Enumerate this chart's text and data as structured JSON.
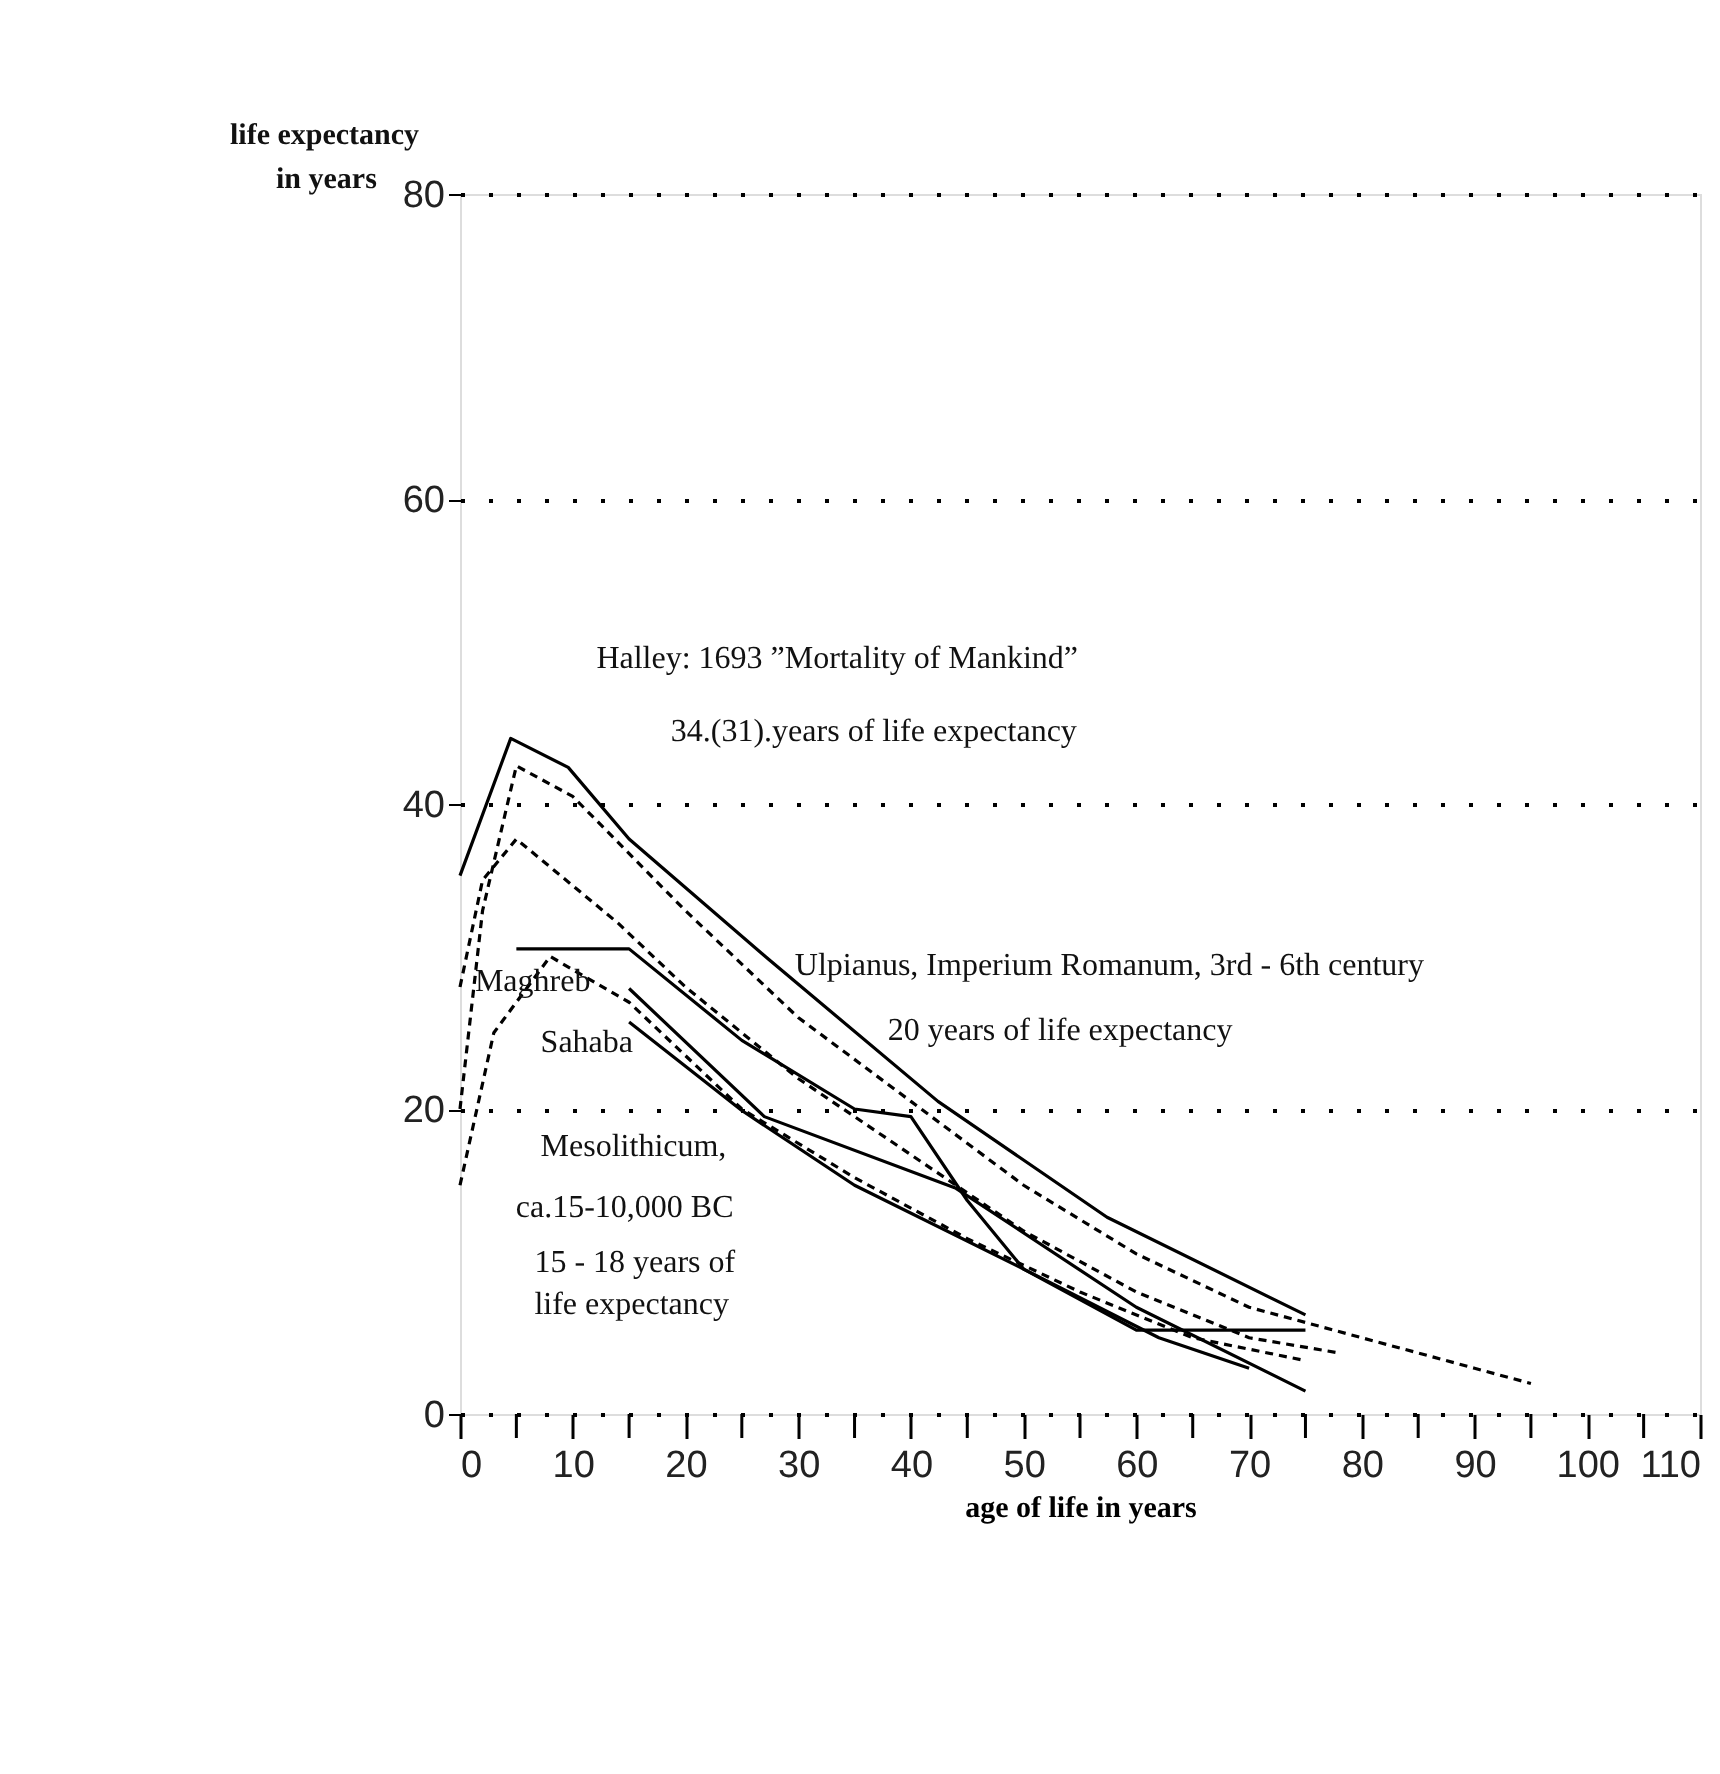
{
  "chart_data": {
    "type": "line",
    "xlabel": "age of life in years",
    "ylabel": "life expectancy in years",
    "xlim": [
      0,
      110
    ],
    "ylim": [
      0,
      80
    ],
    "xticks": [
      0,
      {
        "value": 5,
        "label": null
      },
      10,
      {
        "value": 15,
        "label": null
      },
      20,
      {
        "value": 25,
        "label": null
      },
      30,
      {
        "value": 35,
        "label": null
      },
      40,
      {
        "value": 45,
        "label": null
      },
      50,
      {
        "value": 55,
        "label": null
      },
      60,
      {
        "value": 65,
        "label": null
      },
      70,
      {
        "value": 75,
        "label": null
      },
      80,
      {
        "value": 85,
        "label": null
      },
      90,
      {
        "value": 95,
        "label": null
      },
      100,
      {
        "value": 105,
        "label": null
      },
      110
    ],
    "yticks": [
      0,
      20,
      40,
      60,
      80
    ],
    "grid": "y",
    "series": [
      {
        "color": "#000000",
        "line_style": "solid",
        "x": [
          0,
          4.5,
          9.6,
          15,
          27.4,
          42.4,
          57.4,
          75
        ],
        "values": [
          35.3,
          44.3,
          42.4,
          37.7,
          29.8,
          20.5,
          12.9,
          6.5
        ]
      },
      {
        "color": "#000000",
        "line_style": "dashed",
        "x": [
          0,
          2,
          5,
          10,
          20,
          30,
          40,
          50,
          60,
          70,
          80,
          85,
          90,
          95
        ],
        "values": [
          20,
          33,
          42.5,
          40.5,
          33,
          26,
          20.5,
          15,
          10.5,
          7,
          5,
          4,
          3,
          2
        ]
      },
      {
        "color": "#000000",
        "line_style": "solid",
        "x": [
          5,
          15,
          25,
          35,
          40,
          45,
          50,
          60,
          75
        ],
        "values": [
          30.5,
          30.5,
          24.5,
          20,
          19.5,
          14,
          9.5,
          5.5,
          5.5
        ]
      },
      {
        "color": "#000000",
        "line_style": "solid",
        "x": [
          15,
          27,
          44,
          60,
          75
        ],
        "values": [
          27.9,
          19.5,
          14.8,
          7,
          1.5
        ]
      },
      {
        "color": "#000000",
        "line_style": "solid",
        "x": [
          15,
          25,
          35,
          50,
          62,
          70
        ],
        "values": [
          25.7,
          19.9,
          15,
          9.5,
          5,
          3
        ]
      },
      {
        "color": "#000000",
        "line_style": "dashed",
        "x": [
          0,
          2,
          5,
          14,
          20,
          30,
          40,
          50,
          60,
          70,
          78
        ],
        "values": [
          28,
          35,
          37.7,
          32.2,
          28,
          22,
          17,
          12,
          8,
          5,
          4
        ]
      },
      {
        "color": "#000000",
        "line_style": "dashed",
        "x": [
          0,
          3,
          8,
          15,
          25,
          35,
          45,
          55,
          65,
          75
        ],
        "values": [
          15,
          25,
          30,
          27,
          20,
          15.5,
          11.5,
          8,
          5,
          3.5
        ]
      }
    ],
    "annotations": [
      "Halley: 1693 ”Mortality of Mankind”",
      "34.(31).years of life expectancy",
      "Ulpianus, Imperium Romanum, 3rd - 6th century",
      "20 years of life expectancy",
      "Maghreb",
      "Sahaba",
      "Mesolithicum,",
      "ca.15-10,000 BC",
      "15 - 18 years of",
      "life expectancy"
    ]
  }
}
